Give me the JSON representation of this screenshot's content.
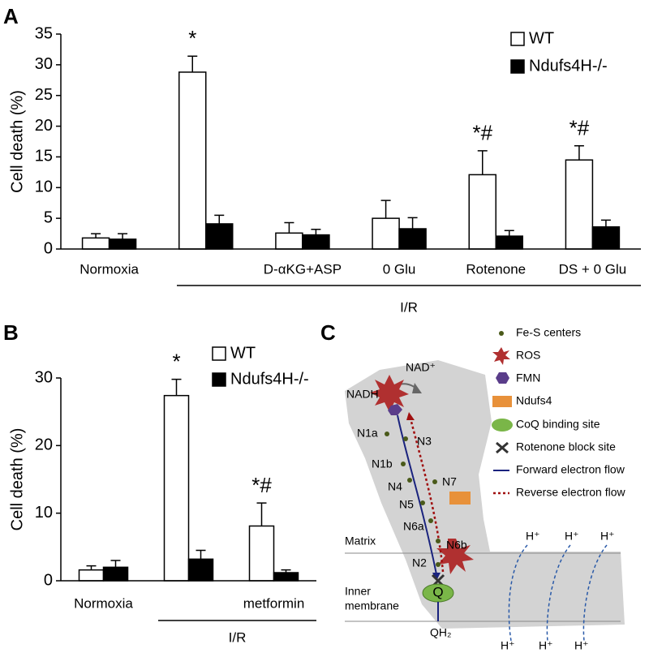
{
  "chart_data": [
    {
      "type": "bar",
      "panel_label": "A",
      "y_label": "Cell death (%)",
      "group_label": "I/R",
      "categories": [
        "Normoxia",
        null,
        "D-αKG+ASP",
        "0 Glu",
        "Rotenone",
        "DS + 0 Glu"
      ],
      "series": [
        {
          "name": "WT",
          "color": "#ffffff",
          "values": [
            1.8,
            28.8,
            2.6,
            5.0,
            12.1,
            14.5
          ],
          "errors": [
            0.7,
            2.6,
            1.7,
            2.9,
            3.9,
            2.3
          ]
        },
        {
          "name": "Ndufs4H-/-",
          "color": "#000000",
          "values": [
            1.6,
            4.1,
            2.3,
            3.3,
            2.1,
            3.6
          ],
          "errors": [
            0.9,
            1.4,
            0.9,
            1.8,
            0.9,
            1.1
          ]
        }
      ],
      "significance": [
        null,
        "*",
        null,
        null,
        "*#",
        "*#"
      ],
      "ylim": [
        0,
        35
      ],
      "yticks": [
        0,
        5,
        10,
        15,
        20,
        25,
        30,
        35
      ]
    },
    {
      "type": "bar",
      "panel_label": "B",
      "y_label": "Cell death (%)",
      "group_label": "I/R",
      "categories": [
        "Normoxia",
        null,
        "metformin"
      ],
      "series": [
        {
          "name": "WT",
          "color": "#ffffff",
          "values": [
            1.6,
            27.4,
            8.1
          ],
          "errors": [
            0.6,
            2.4,
            3.4
          ]
        },
        {
          "name": "Ndufs4H-/-",
          "color": "#000000",
          "values": [
            2.0,
            3.2,
            1.2
          ],
          "errors": [
            1.0,
            1.3,
            0.4
          ]
        }
      ],
      "significance": [
        null,
        "*",
        "*#"
      ],
      "ylim": [
        0,
        30
      ],
      "yticks": [
        0,
        10,
        20,
        30
      ]
    }
  ],
  "diagram": {
    "panel_label": "C",
    "legend": [
      "Fe-S centers",
      "ROS",
      "FMN",
      "Ndufs4",
      "CoQ binding site",
      "Rotenone block site",
      "Forward electron flow",
      "Reverse electron flow"
    ],
    "labels": {
      "nadh": "NADH",
      "nad": "NAD⁺",
      "n1a": "N1a",
      "n3": "N3",
      "n1b": "N1b",
      "n4": "N4",
      "n7": "N7",
      "n5": "N5",
      "n6a": "N6a",
      "n6b": "N6b",
      "n2": "N2",
      "q": "Q",
      "qh2": "QH₂",
      "matrix": "Matrix",
      "inner": "Inner",
      "membrane": "membrane",
      "h_top": [
        "H⁺",
        "H⁺",
        "H⁺"
      ],
      "h_bottom": [
        "H⁺",
        "H⁺",
        "H⁺"
      ]
    }
  }
}
